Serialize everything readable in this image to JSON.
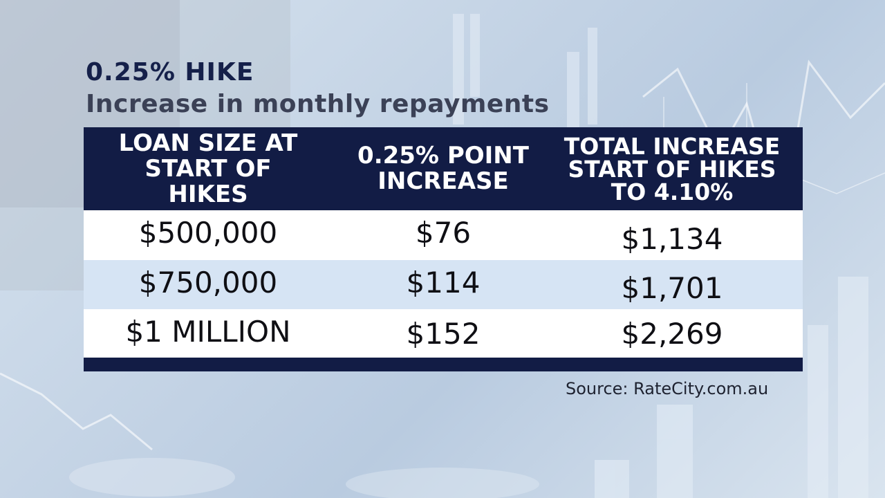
{
  "title": "0.25% HIKE",
  "subtitle": "Increase in monthly repayments",
  "source": "Source: RateCity.com.au",
  "colors": {
    "header_bg": "#121c45",
    "row_alt_bg": "#d6e4f4",
    "title_color": "#15204a"
  },
  "chart_data": {
    "type": "table",
    "columns": [
      "LOAN SIZE AT\nSTART OF HIKES",
      "0.25% POINT\nINCREASE",
      "TOTAL INCREASE\nSTART OF HIKES\nTO 4.10%"
    ],
    "rows": [
      [
        "$500,000",
        "$76",
        "$1,134"
      ],
      [
        "$750,000",
        "$114",
        "$1,701"
      ],
      [
        "$1 MILLION",
        "$152",
        "$2,269"
      ]
    ]
  }
}
